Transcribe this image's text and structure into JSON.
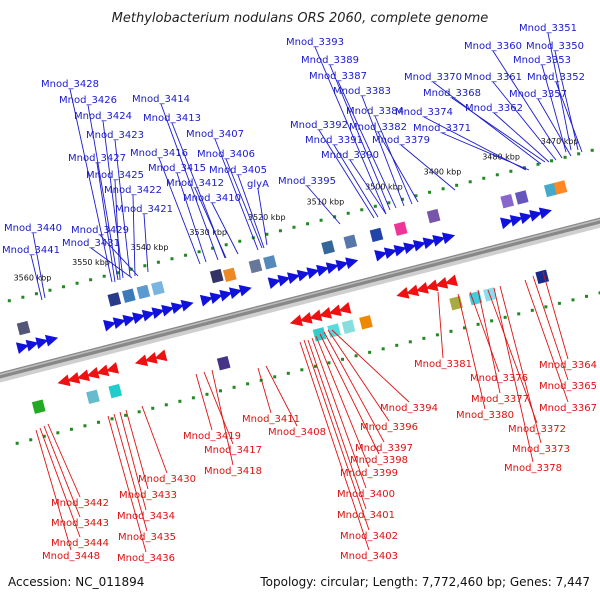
{
  "title": "Methylobacterium nodulans ORS 2060, complete genome",
  "footer": {
    "accession": "Accession: NC_011894",
    "summary": "Topology: circular; Length: 7,772,460 bp; Genes: 7,447"
  },
  "colors": {
    "forward_label": "#1a1acc",
    "reverse_label": "#dd1111",
    "backbone": "#888888",
    "tick": "#228822",
    "cds_forward": "#1111dd",
    "cds_reverse": "#ee1111"
  },
  "kbp_ticks": [
    "3470 kbp",
    "3480 kbp",
    "3490 kbp",
    "3500 kbp",
    "3510 kbp",
    "3520 kbp",
    "3530 kbp",
    "3540 kbp",
    "3550 kbp",
    "3560 kbp"
  ],
  "forward_genes": [
    "Mnod_3351",
    "Mnod_3350",
    "Mnod_3353",
    "Mnod_3352",
    "Mnod_3360",
    "Mnod_3357",
    "Mnod_3361",
    "Mnod_3370",
    "Mnod_3368",
    "Mnod_3362",
    "Mnod_3374",
    "Mnod_3371",
    "Mnod_3393",
    "Mnod_3389",
    "Mnod_3387",
    "Mnod_3383",
    "Mnod_3384",
    "Mnod_3382",
    "Mnod_3379",
    "Mnod_3392",
    "Mnod_3391",
    "Mnod_3390",
    "Mnod_3395",
    "Mnod_3428",
    "Mnod_3426",
    "Mnod_3424",
    "Mnod_3423",
    "Mnod_3427",
    "Mnod_3425",
    "Mnod_3422",
    "Mnod_3421",
    "Mnod_3414",
    "Mnod_3413",
    "Mnod_3407",
    "Mnod_3416",
    "Mnod_3415",
    "Mnod_3406",
    "Mnod_3405",
    "Mnod_3412",
    "Mnod_3410",
    "glyA",
    "Mnod_3440",
    "Mnod_3429",
    "Mnod_3441",
    "Mnod_3431"
  ],
  "reverse_genes": [
    "Mnod_3381",
    "Mnod_3376",
    "Mnod_3377",
    "Mnod_3380",
    "Mnod_3372",
    "Mnod_3373",
    "Mnod_3378",
    "Mnod_3364",
    "Mnod_3365",
    "Mnod_3367",
    "Mnod_3394",
    "Mnod_3396",
    "Mnod_3397",
    "Mnod_3398",
    "Mnod_3399",
    "Mnod_3400",
    "Mnod_3401",
    "Mnod_3402",
    "Mnod_3403",
    "Mnod_3411",
    "Mnod_3408",
    "Mnod_3419",
    "Mnod_3417",
    "Mnod_3418",
    "Mnod_3430",
    "Mnod_3433",
    "Mnod_3434",
    "Mnod_3435",
    "Mnod_3436",
    "Mnod_3442",
    "Mnod_3443",
    "Mnod_3444",
    "Mnod_3448"
  ]
}
